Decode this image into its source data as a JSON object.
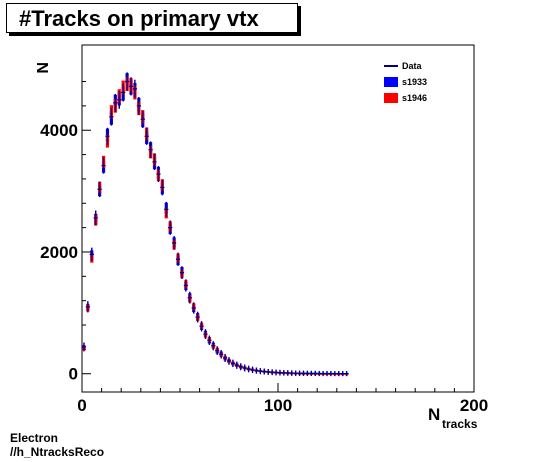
{
  "chart_data": {
    "type": "scatter",
    "title": "#Tracks on primary vtx",
    "ylabel": "N",
    "xlabel": "N",
    "xlabel_sub": "tracks",
    "xlim": [
      0,
      200
    ],
    "ylim": [
      -300,
      5400
    ],
    "xticks": [
      0,
      100,
      200
    ],
    "xtick_labels": [
      "0",
      "100",
      "200"
    ],
    "yticks": [
      0,
      2000,
      4000
    ],
    "ytick_labels": [
      "0",
      "2000",
      "4000"
    ],
    "grid": false,
    "legend_position": "top-right",
    "series": [
      {
        "name": "Data",
        "color": "#00008b",
        "style": "line",
        "x": [
          1,
          3,
          5,
          7,
          9,
          11,
          13,
          15,
          17,
          19,
          21,
          23,
          25,
          27,
          29,
          31,
          33,
          35,
          37,
          39,
          41,
          43,
          45,
          47,
          49,
          51,
          53,
          55,
          57,
          59,
          61,
          63,
          65,
          67,
          69,
          71,
          73,
          75,
          77,
          79,
          81,
          83,
          85,
          87,
          89,
          91,
          93,
          95,
          97,
          99,
          101,
          103,
          105,
          107,
          109,
          111,
          113,
          115,
          117,
          119,
          121,
          123,
          125,
          127,
          129,
          131,
          133,
          135
        ],
        "y": [
          440,
          1100,
          1960,
          2560,
          3030,
          3420,
          3900,
          4220,
          4450,
          4500,
          4620,
          4800,
          4720,
          4680,
          4400,
          4180,
          3900,
          3680,
          3480,
          3280,
          3060,
          2700,
          2400,
          2150,
          1880,
          1660,
          1450,
          1250,
          1080,
          930,
          780,
          650,
          550,
          460,
          380,
          320,
          260,
          210,
          170,
          140,
          115,
          95,
          78,
          64,
          52,
          43,
          36,
          30,
          25,
          21,
          18,
          15,
          13,
          11,
          9,
          8,
          7,
          6,
          5,
          5,
          4,
          3,
          3,
          3,
          2,
          2,
          2,
          2
        ]
      },
      {
        "name": "s1933",
        "color": "#0000ff",
        "style": "box",
        "x": [
          1,
          3,
          5,
          7,
          9,
          11,
          13,
          15,
          17,
          19,
          21,
          23,
          25,
          27,
          29,
          31,
          33,
          35,
          37,
          39,
          41,
          43,
          45,
          47,
          49,
          51,
          53,
          55,
          57,
          59,
          61,
          63,
          65,
          67,
          69,
          71,
          73,
          75,
          77,
          79,
          81,
          83,
          85,
          87,
          89,
          91,
          93,
          95,
          97,
          99,
          101,
          103,
          105,
          107,
          109,
          111,
          113,
          115,
          117,
          119,
          121,
          123,
          125,
          127,
          129,
          131,
          133,
          135
        ],
        "y": [
          430,
          1090,
          1950,
          2540,
          3010,
          3400,
          3920,
          4200,
          4470,
          4520,
          4600,
          4820,
          4700,
          4660,
          4420,
          4160,
          3880,
          3700,
          3460,
          3300,
          3040,
          2720,
          2380,
          2160,
          1860,
          1680,
          1440,
          1260,
          1070,
          940,
          770,
          660,
          540,
          470,
          370,
          330,
          250,
          215,
          165,
          145,
          110,
          98,
          75,
          66,
          50,
          44,
          35,
          31,
          24,
          22,
          17,
          16,
          12,
          12,
          9,
          8,
          7,
          6,
          5,
          5,
          4,
          3,
          3,
          3,
          2,
          2,
          2,
          2
        ]
      },
      {
        "name": "s1946",
        "color": "#ff0000",
        "style": "box",
        "x": [
          1,
          3,
          5,
          7,
          9,
          11,
          13,
          15,
          17,
          19,
          21,
          23,
          25,
          27,
          29,
          31,
          33,
          35,
          37,
          39,
          41,
          43,
          45,
          47,
          49,
          51,
          53,
          55,
          57,
          59,
          61,
          63,
          65,
          67,
          69,
          71,
          73,
          75,
          77,
          79,
          81,
          83,
          85,
          87,
          89,
          91,
          93,
          95,
          97,
          99,
          101,
          103,
          105,
          107,
          109,
          111,
          113,
          115,
          117,
          119,
          121,
          123,
          125,
          127,
          129,
          131,
          133,
          135
        ],
        "y": [
          420,
          1080,
          1900,
          2520,
          3060,
          3480,
          3820,
          4300,
          4400,
          4560,
          4700,
          4760,
          4740,
          4620,
          4360,
          4220,
          3940,
          3640,
          3520,
          3260,
          3100,
          2640,
          2420,
          2120,
          1900,
          1640,
          1470,
          1230,
          1100,
          920,
          790,
          640,
          560,
          450,
          390,
          310,
          265,
          205,
          175,
          135,
          118,
          92,
          80,
          62,
          54,
          42,
          37,
          29,
          26,
          20,
          18,
          14,
          13,
          10,
          9,
          7,
          7,
          6,
          5,
          4,
          4,
          3,
          3,
          2,
          2,
          2,
          2,
          2
        ]
      }
    ]
  },
  "footer": {
    "line1": "Electron",
    "line2": "//h_NtracksReco"
  }
}
